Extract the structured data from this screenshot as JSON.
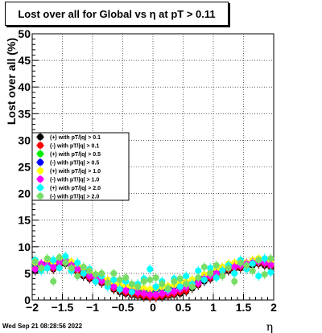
{
  "chart_data": {
    "type": "scatter",
    "title": "Lost over all for Global vs    η at pT > 0.11",
    "xlabel": "η",
    "ylabel": "Lost over all (%)",
    "xlim": [
      -2,
      2
    ],
    "ylim": [
      0,
      50
    ],
    "x_ticks": [
      "−2",
      "−1.5",
      "−1",
      "−0.5",
      "0",
      "0.5",
      "1",
      "1.5",
      "2"
    ],
    "x_tick_values": [
      -2,
      -1.5,
      -1,
      -0.5,
      0,
      0.5,
      1,
      1.5,
      2
    ],
    "y_ticks": [
      "0",
      "5",
      "10",
      "15",
      "20",
      "25",
      "30",
      "35",
      "40",
      "45",
      "50"
    ],
    "y_tick_values": [
      0,
      5,
      10,
      15,
      20,
      25,
      30,
      35,
      40,
      45,
      50
    ],
    "grid": true,
    "legend_position": "middle-left",
    "series": [
      {
        "name": "(+) with pT/|q| > 0.1",
        "color": "#000000",
        "marker": "circle",
        "x": [
          -1.95,
          -1.85,
          -1.75,
          -1.65,
          -1.55,
          -1.45,
          -1.35,
          -1.25,
          -1.15,
          -1.05,
          -0.95,
          -0.85,
          -0.75,
          -0.65,
          -0.55,
          -0.45,
          -0.35,
          -0.25,
          -0.15,
          -0.05,
          0.05,
          0.15,
          0.25,
          0.35,
          0.45,
          0.55,
          0.65,
          0.75,
          0.85,
          0.95,
          1.05,
          1.15,
          1.25,
          1.35,
          1.45,
          1.55,
          1.65,
          1.75,
          1.85,
          1.95
        ],
        "y": [
          5.5,
          6.2,
          6.0,
          5.8,
          6.5,
          6.8,
          6.0,
          5.2,
          4.5,
          4.0,
          3.5,
          3.2,
          2.8,
          2.0,
          1.5,
          1.2,
          1.0,
          0.8,
          0.6,
          0.5,
          0.5,
          0.6,
          0.8,
          1.0,
          1.2,
          1.6,
          2.2,
          2.8,
          3.5,
          4.0,
          4.5,
          5.0,
          5.5,
          5.8,
          6.0,
          6.2,
          6.5,
          6.8,
          6.5,
          6.2
        ]
      },
      {
        "name": "(-) with pT/|q| > 0.1",
        "color": "#ff0000",
        "marker": "circle",
        "x": [
          -1.95,
          -1.85,
          -1.75,
          -1.65,
          -1.55,
          -1.45,
          -1.35,
          -1.25,
          -1.15,
          -1.05,
          -0.95,
          -0.85,
          -0.75,
          -0.65,
          -0.55,
          -0.45,
          -0.35,
          -0.25,
          -0.15,
          -0.05,
          0.05,
          0.15,
          0.25,
          0.35,
          0.45,
          0.55,
          0.65,
          0.75,
          0.85,
          0.95,
          1.05,
          1.15,
          1.25,
          1.35,
          1.45,
          1.55,
          1.65,
          1.75,
          1.85,
          1.95
        ],
        "y": [
          6.0,
          6.5,
          6.2,
          6.0,
          6.8,
          7.0,
          6.2,
          5.5,
          4.8,
          4.2,
          3.8,
          3.4,
          3.0,
          2.2,
          1.8,
          1.4,
          1.2,
          1.0,
          0.8,
          0.6,
          0.6,
          0.8,
          1.0,
          1.2,
          1.5,
          1.8,
          2.5,
          3.0,
          3.8,
          4.2,
          4.8,
          5.2,
          5.8,
          6.0,
          6.2,
          6.5,
          6.8,
          7.0,
          6.8,
          6.4
        ]
      },
      {
        "name": "(+) with pT/|q| > 0.5",
        "color": "#00ee00",
        "marker": "circle",
        "x": [
          -1.95,
          -1.85,
          -1.75,
          -1.65,
          -1.55,
          -1.45,
          -1.35,
          -1.25,
          -1.15,
          -1.05,
          -0.95,
          -0.85,
          -0.75,
          -0.65,
          -0.55,
          -0.45,
          -0.35,
          -0.25,
          -0.15,
          -0.05,
          0.05,
          0.15,
          0.25,
          0.35,
          0.45,
          0.55,
          0.65,
          0.75,
          0.85,
          0.95,
          1.05,
          1.15,
          1.25,
          1.35,
          1.45,
          1.55,
          1.65,
          1.75,
          1.85,
          1.95
        ],
        "y": [
          6.5,
          6.0,
          7.0,
          6.5,
          7.2,
          7.5,
          6.8,
          6.0,
          5.5,
          4.8,
          4.2,
          3.8,
          3.5,
          2.8,
          2.5,
          2.2,
          2.0,
          1.8,
          1.8,
          1.6,
          1.8,
          2.0,
          2.2,
          2.5,
          2.8,
          3.0,
          3.4,
          3.8,
          4.2,
          4.8,
          5.2,
          5.8,
          6.2,
          6.5,
          6.8,
          6.5,
          7.0,
          7.2,
          7.0,
          6.8
        ]
      },
      {
        "name": "(-) with pT/|q| > 0.5",
        "color": "#0000ff",
        "marker": "circle",
        "x": [
          -1.95,
          -1.85,
          -1.75,
          -1.65,
          -1.55,
          -1.45,
          -1.35,
          -1.25,
          -1.15,
          -1.05,
          -0.95,
          -0.85,
          -0.75,
          -0.65,
          -0.55,
          -0.45,
          -0.35,
          -0.25,
          -0.15,
          -0.05,
          0.05,
          0.15,
          0.25,
          0.35,
          0.45,
          0.55,
          0.65,
          0.75,
          0.85,
          0.95,
          1.05,
          1.15,
          1.25,
          1.35,
          1.45,
          1.55,
          1.65,
          1.75,
          1.85,
          1.95
        ],
        "y": [
          6.8,
          6.2,
          7.2,
          6.8,
          7.5,
          7.8,
          7.0,
          6.2,
          5.8,
          5.0,
          4.5,
          4.0,
          3.6,
          3.0,
          2.6,
          2.4,
          2.2,
          2.0,
          2.0,
          1.8,
          2.0,
          2.2,
          2.4,
          2.6,
          3.0,
          3.2,
          3.6,
          4.0,
          4.5,
          5.0,
          5.5,
          6.0,
          6.5,
          6.8,
          7.0,
          6.8,
          7.2,
          7.5,
          7.2,
          7.0
        ]
      },
      {
        "name": "(+) with pT/|q| > 1.0",
        "color": "#ffff00",
        "marker": "circle",
        "x": [
          -1.95,
          -1.85,
          -1.75,
          -1.65,
          -1.55,
          -1.45,
          -1.35,
          -1.25,
          -1.15,
          -1.05,
          -0.95,
          -0.85,
          -0.75,
          -0.65,
          -0.55,
          -0.45,
          -0.35,
          -0.25,
          -0.15,
          -0.05,
          0.05,
          0.15,
          0.25,
          0.35,
          0.45,
          0.55,
          0.65,
          0.75,
          0.85,
          0.95,
          1.05,
          1.15,
          1.25,
          1.35,
          1.45,
          1.55,
          1.65,
          1.75,
          1.85,
          1.95
        ],
        "y": [
          7.0,
          6.5,
          7.5,
          7.0,
          7.8,
          8.0,
          7.2,
          6.5,
          6.0,
          5.2,
          4.8,
          4.2,
          3.8,
          3.2,
          2.8,
          2.6,
          2.4,
          2.2,
          2.2,
          2.0,
          2.2,
          2.4,
          2.6,
          2.8,
          3.2,
          3.4,
          3.8,
          4.2,
          4.8,
          5.2,
          5.8,
          6.2,
          6.8,
          7.0,
          7.2,
          7.0,
          7.5,
          7.8,
          7.5,
          7.2
        ]
      },
      {
        "name": "(-) with pT/|q| > 1.0",
        "color": "#ff00ff",
        "marker": "circle",
        "x": [
          -1.95,
          -1.85,
          -1.75,
          -1.65,
          -1.55,
          -1.45,
          -1.35,
          -1.25,
          -1.15,
          -1.05,
          -0.95,
          -0.85,
          -0.75,
          -0.65,
          -0.55,
          -0.45,
          -0.35,
          -0.25,
          -0.15,
          -0.05,
          0.05,
          0.15,
          0.25,
          0.35,
          0.45,
          0.55,
          0.65,
          0.75,
          0.85,
          0.95,
          1.05,
          1.15,
          1.25,
          1.35,
          1.45,
          1.55,
          1.65,
          1.75,
          1.85,
          1.95
        ],
        "y": [
          5.8,
          6.8,
          6.5,
          6.2,
          7.0,
          7.2,
          6.5,
          5.8,
          5.0,
          4.5,
          4.0,
          3.6,
          3.2,
          2.5,
          2.0,
          1.8,
          1.6,
          1.4,
          1.2,
          1.0,
          1.0,
          1.2,
          1.4,
          1.6,
          2.0,
          2.4,
          2.8,
          3.2,
          4.0,
          4.5,
          5.0,
          5.5,
          6.0,
          6.2,
          6.5,
          6.8,
          7.0,
          7.2,
          7.0,
          6.6
        ]
      },
      {
        "name": "(+) with pT/|q| > 2.0",
        "color": "#00ffff",
        "marker": "circle",
        "x": [
          -1.95,
          -1.85,
          -1.75,
          -1.65,
          -1.55,
          -1.45,
          -1.35,
          -1.25,
          -1.15,
          -1.05,
          -0.95,
          -0.85,
          -0.75,
          -0.65,
          -0.55,
          -0.45,
          -0.35,
          -0.25,
          -0.15,
          -0.05,
          0.05,
          0.15,
          0.25,
          0.35,
          0.45,
          0.55,
          0.65,
          0.75,
          0.85,
          0.95,
          1.05,
          1.15,
          1.25,
          1.35,
          1.45,
          1.55,
          1.65,
          1.75,
          1.85,
          1.95
        ],
        "y": [
          7.5,
          5.5,
          6.0,
          7.5,
          6.0,
          8.2,
          5.5,
          7.0,
          5.0,
          5.8,
          3.5,
          4.5,
          2.5,
          3.8,
          2.0,
          3.5,
          1.5,
          3.0,
          4.0,
          5.8,
          2.5,
          3.5,
          2.0,
          4.0,
          2.5,
          4.5,
          3.0,
          5.5,
          3.8,
          6.0,
          4.2,
          5.5,
          6.5,
          5.0,
          7.5,
          5.8,
          6.8,
          4.5,
          7.8,
          5.2
        ]
      },
      {
        "name": "(-) with pT/|q| > 2.0",
        "color": "#77dd66",
        "marker": "circle",
        "x": [
          -1.95,
          -1.85,
          -1.75,
          -1.65,
          -1.55,
          -1.45,
          -1.35,
          -1.25,
          -1.15,
          -1.05,
          -0.95,
          -0.85,
          -0.75,
          -0.65,
          -0.55,
          -0.45,
          -0.35,
          -0.25,
          -0.15,
          -0.05,
          0.05,
          0.15,
          0.25,
          0.35,
          0.45,
          0.55,
          0.65,
          0.75,
          0.85,
          0.95,
          1.05,
          1.15,
          1.25,
          1.35,
          1.45,
          1.55,
          1.65,
          1.75,
          1.85,
          1.95
        ],
        "y": [
          7.2,
          6.0,
          7.8,
          3.5,
          8.0,
          7.0,
          6.0,
          4.5,
          6.2,
          5.5,
          4.8,
          5.0,
          3.2,
          5.0,
          3.8,
          4.2,
          3.0,
          2.5,
          3.5,
          3.8,
          4.2,
          3.0,
          2.2,
          3.5,
          4.0,
          3.0,
          2.5,
          4.2,
          6.2,
          5.0,
          6.5,
          4.5,
          6.0,
          3.5,
          7.0,
          6.5,
          5.5,
          7.5,
          4.8,
          7.8
        ]
      }
    ]
  },
  "footer": {
    "timestamp": "Wed Sep 21 08:28:56 2022"
  }
}
